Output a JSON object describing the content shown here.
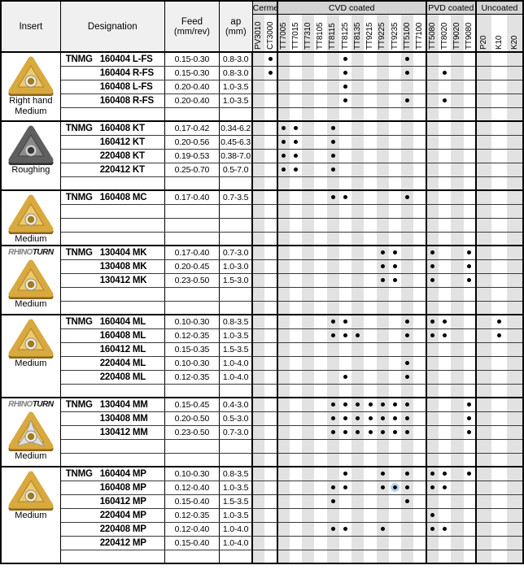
{
  "header": {
    "insert": "Insert",
    "designation": "Designation",
    "feed_line1": "Feed",
    "feed_line2": "(mm/rev)",
    "ap_line1": "ap",
    "ap_line2": "(mm)",
    "groups": [
      {
        "label": "Cermet",
        "grades": [
          "PV3010",
          "CT3000"
        ]
      },
      {
        "label": "CVD coated",
        "grades": [
          "TT7005",
          "TT7015",
          "TT7310",
          "TT8105",
          "TT8115",
          "TT8125",
          "TT8135",
          "TT9215",
          "TT9225",
          "TT9235",
          "TT5100",
          "TT7100"
        ]
      },
      {
        "label": "PVD coated",
        "grades": [
          "TT5080",
          "TT8020",
          "TT9020",
          "TT9080"
        ]
      },
      {
        "label": "Uncoated",
        "grades": [
          "P20",
          "K10",
          "K20"
        ]
      }
    ]
  },
  "colors": {
    "stripe": "#e2e2e2",
    "group_header_bg": "#d4d4d4",
    "header_bg": "#f0f0f0",
    "border": "#000000",
    "dot": "#000000",
    "highlight": "#b7d3ea",
    "insert_gold": "#d8a93e",
    "insert_dark": "#606060"
  },
  "logo_text": {
    "part1": "RHINO",
    "part2": "TURN"
  },
  "insert_groups": [
    {
      "insert": {
        "variant": "gold",
        "logo": false,
        "caption_lines": [
          "Right hand",
          "Medium"
        ]
      },
      "rows": [
        {
          "prefix": "TNMG",
          "designation": "160404 L-FS",
          "feed": "0.15-0.30",
          "ap": "0.8-3.0",
          "grades": [
            "CT3000",
            "TT8125",
            "TT5100"
          ]
        },
        {
          "prefix": "",
          "designation": "160404 R-FS",
          "feed": "0.15-0.30",
          "ap": "0.8-3.0",
          "grades": [
            "CT3000",
            "TT8125",
            "TT5100",
            "TT8020"
          ]
        },
        {
          "prefix": "",
          "designation": "160408 L-FS",
          "feed": "0.20-0.40",
          "ap": "1.0-3.5",
          "grades": [
            "TT8125"
          ]
        },
        {
          "prefix": "",
          "designation": "160408 R-FS",
          "feed": "0.20-0.40",
          "ap": "1.0-3.5",
          "grades": [
            "TT8125",
            "TT5100",
            "TT8020"
          ]
        },
        {
          "empty": true
        }
      ]
    },
    {
      "insert": {
        "variant": "dark",
        "logo": false,
        "caption_lines": [
          "Roughing"
        ]
      },
      "rows": [
        {
          "prefix": "TNMG",
          "designation": "160408 KT",
          "feed": "0.17-0.42",
          "ap": "0.34-6.2",
          "grades": [
            "TT7005",
            "TT7015",
            "TT8115"
          ]
        },
        {
          "prefix": "",
          "designation": "160412 KT",
          "feed": "0.20-0.56",
          "ap": "0.45-6.3",
          "grades": [
            "TT7005",
            "TT7015",
            "TT8115"
          ]
        },
        {
          "prefix": "",
          "designation": "220408 KT",
          "feed": "0.19-0.53",
          "ap": "0.38-7.0",
          "grades": [
            "TT7005",
            "TT7015",
            "TT8115"
          ]
        },
        {
          "prefix": "",
          "designation": "220412 KT",
          "feed": "0.25-0.70",
          "ap": "0.5-7.0",
          "grades": [
            "TT7005",
            "TT7015",
            "TT8115"
          ]
        },
        {
          "empty": true
        }
      ]
    },
    {
      "insert": {
        "variant": "gold",
        "logo": false,
        "caption_lines": [
          "Medium"
        ]
      },
      "rows": [
        {
          "prefix": "TNMG",
          "designation": "160408 MC",
          "feed": "0.17-0.40",
          "ap": "0.7-3.5",
          "grades": [
            "TT8115",
            "TT8125",
            "TT5100"
          ]
        },
        {
          "empty": true
        },
        {
          "empty": true
        },
        {
          "empty": true
        }
      ]
    },
    {
      "insert": {
        "variant": "gold",
        "logo": true,
        "caption_lines": [
          "Medium"
        ]
      },
      "rows": [
        {
          "prefix": "TNMG",
          "designation": "130404 MK",
          "feed": "0.17-0.40",
          "ap": "0.7-3.0",
          "grades": [
            "TT9225",
            "TT9235",
            "TT5080",
            "TT9080"
          ]
        },
        {
          "prefix": "",
          "designation": "130408 MK",
          "feed": "0.20-0.45",
          "ap": "1.0-3.0",
          "grades": [
            "TT9225",
            "TT9235",
            "TT5080",
            "TT9080"
          ]
        },
        {
          "prefix": "",
          "designation": "130412 MK",
          "feed": "0.23-0.50",
          "ap": "1.5-3.0",
          "grades": [
            "TT9225",
            "TT9235",
            "TT5080",
            "TT9080"
          ]
        },
        {
          "empty": true
        },
        {
          "empty": true
        }
      ]
    },
    {
      "insert": {
        "variant": "gold",
        "logo": false,
        "caption_lines": [
          "Medium"
        ]
      },
      "rows": [
        {
          "prefix": "TNMG",
          "designation": "160404 ML",
          "feed": "0.10-0.30",
          "ap": "0.8-3.5",
          "grades": [
            "TT8115",
            "TT8125",
            "TT5100",
            "TT5080",
            "TT8020",
            "K10"
          ]
        },
        {
          "prefix": "",
          "designation": "160408 ML",
          "feed": "0.12-0.35",
          "ap": "1.0-3.5",
          "grades": [
            "TT8115",
            "TT8125",
            "TT8135",
            "TT5100",
            "TT5080",
            "TT8020",
            "K10"
          ]
        },
        {
          "prefix": "",
          "designation": "160412 ML",
          "feed": "0.15-0.35",
          "ap": "1.5-3.5",
          "grades": []
        },
        {
          "prefix": "",
          "designation": "220404 ML",
          "feed": "0.10-0.30",
          "ap": "1.0-4.0",
          "grades": [
            "TT5100"
          ]
        },
        {
          "prefix": "",
          "designation": "220408 ML",
          "feed": "0.12-0.35",
          "ap": "1.0-4.0",
          "grades": [
            "TT8125",
            "TT5100"
          ]
        },
        {
          "empty": true
        }
      ]
    },
    {
      "insert": {
        "variant": "goldsilver",
        "logo": true,
        "caption_lines": [
          "Medium"
        ]
      },
      "rows": [
        {
          "prefix": "TNMG",
          "designation": "130404 MM",
          "feed": "0.15-0.45",
          "ap": "0.4-3.0",
          "grades": [
            "TT8115",
            "TT8125",
            "TT8135",
            "TT9215",
            "TT9225",
            "TT9235",
            "TT5100",
            "TT9080"
          ]
        },
        {
          "prefix": "",
          "designation": "130408 MM",
          "feed": "0.20-0.50",
          "ap": "0.5-3.0",
          "grades": [
            "TT8115",
            "TT8125",
            "TT8135",
            "TT9215",
            "TT9225",
            "TT9235",
            "TT5100",
            "TT9080"
          ]
        },
        {
          "prefix": "",
          "designation": "130412 MM",
          "feed": "0.23-0.50",
          "ap": "0.7-3.0",
          "grades": [
            "TT8115",
            "TT8125",
            "TT8135",
            "TT9215",
            "TT9225",
            "TT9235",
            "TT5100",
            "TT9080"
          ]
        },
        {
          "empty": true
        },
        {
          "empty": true
        }
      ]
    },
    {
      "insert": {
        "variant": "gold",
        "logo": false,
        "caption_lines": [
          "Medium"
        ]
      },
      "rows": [
        {
          "prefix": "TNMG",
          "designation": "160404 MP",
          "feed": "0.10-0.30",
          "ap": "0.8-3.5",
          "grades": [
            "TT8125",
            "TT9225",
            "TT5100",
            "TT5080",
            "TT8020",
            "TT9080"
          ]
        },
        {
          "prefix": "",
          "designation": "160408 MP",
          "feed": "0.12-0.40",
          "ap": "1.0-3.5",
          "grades": [
            "TT8115",
            "TT8125",
            "TT9225",
            "TT9235",
            "TT5100",
            "TT5080",
            "TT8020"
          ],
          "highlight": "TT9235"
        },
        {
          "prefix": "",
          "designation": "160412 MP",
          "feed": "0.15-0.40",
          "ap": "1.5-3.5",
          "grades": [
            "TT8115",
            "TT5100"
          ]
        },
        {
          "prefix": "",
          "designation": "220404 MP",
          "feed": "0.12-0.35",
          "ap": "1.0-3.5",
          "grades": [
            "TT5080"
          ]
        },
        {
          "prefix": "",
          "designation": "220408 MP",
          "feed": "0.12-0.40",
          "ap": "1.0-4.0",
          "grades": [
            "TT8115",
            "TT8125",
            "TT9225",
            "TT5080",
            "TT8020"
          ]
        },
        {
          "prefix": "",
          "designation": "220412 MP",
          "feed": "0.15-0.40",
          "ap": "1.0-4.0",
          "grades": []
        },
        {
          "empty": true
        }
      ]
    }
  ]
}
